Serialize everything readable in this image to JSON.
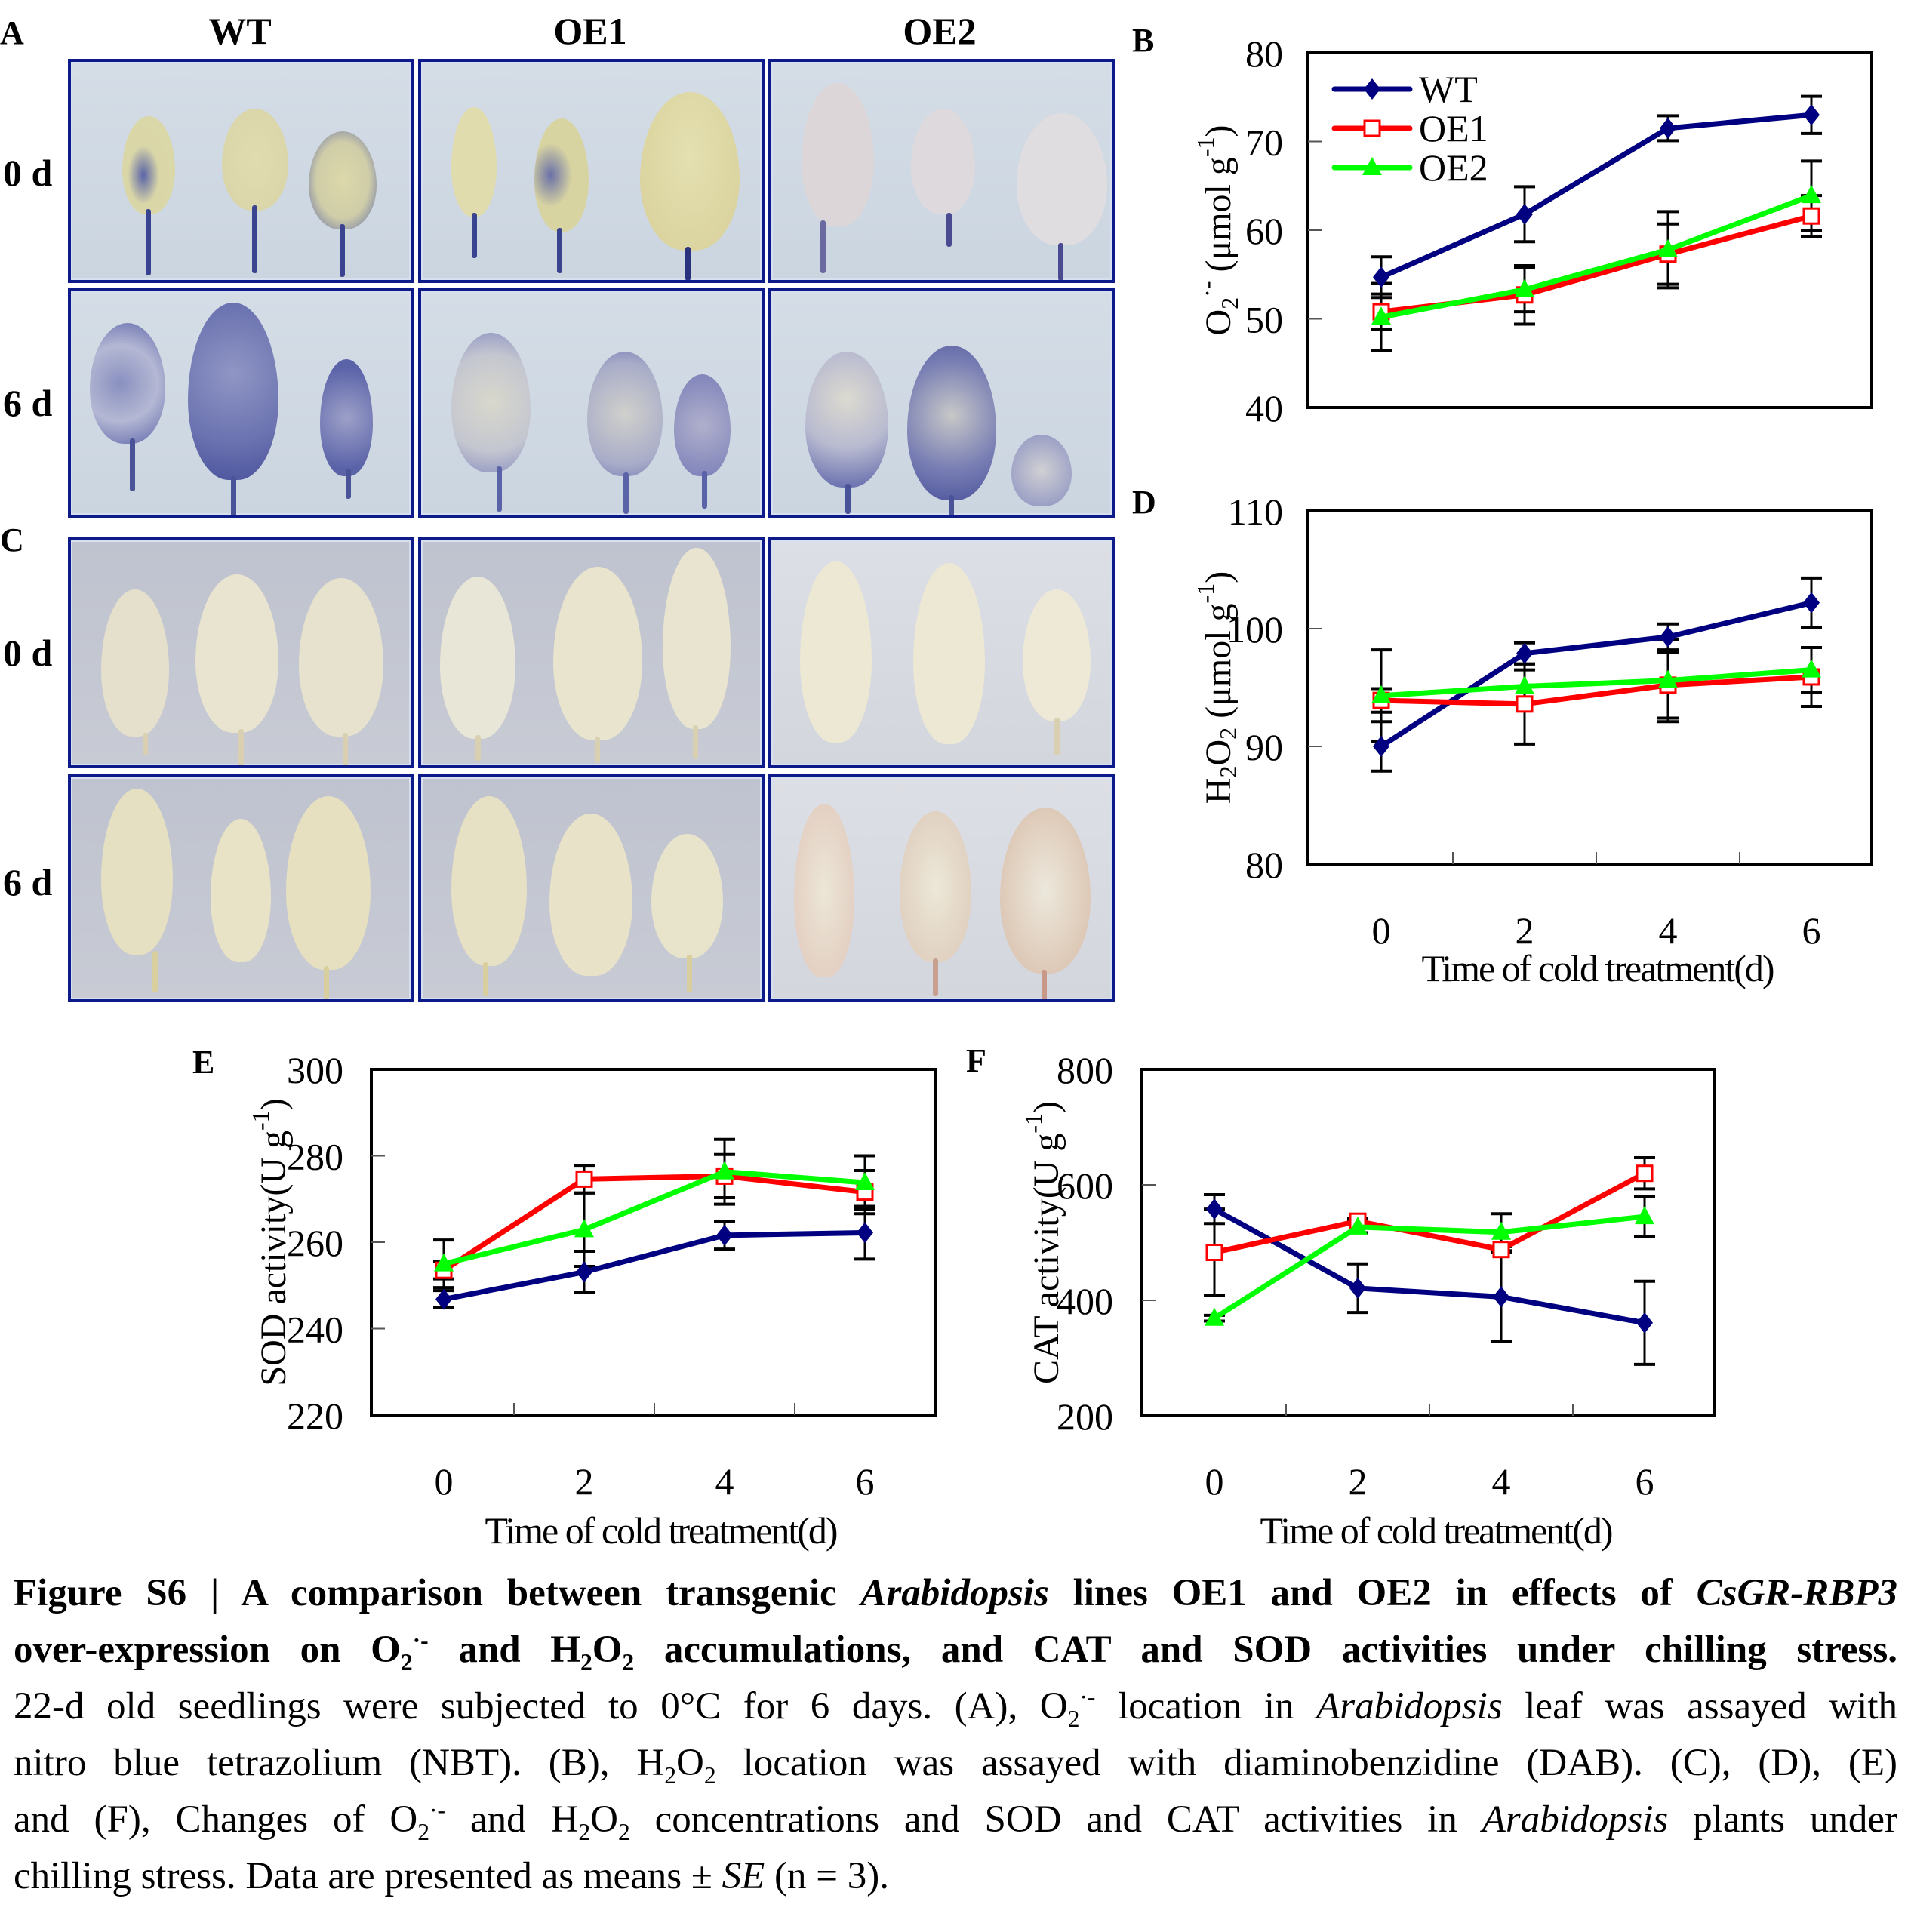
{
  "figure": {
    "panel_letters": {
      "A": "A",
      "B": "B",
      "C": "C",
      "D": "D",
      "E": "E",
      "F": "F"
    },
    "photo_grid": {
      "columns": [
        "WT",
        "OE1",
        "OE2"
      ],
      "rows_A": [
        "0 d",
        "6 d"
      ],
      "rows_C": [
        "0 d",
        "6 d"
      ],
      "stain_A": "NBT (blue formazan spots on leaves)",
      "stain_C": "DAB (pale leaves, faint brown spots in OE2 at 6 d)"
    },
    "colors": {
      "WT": "#000080",
      "OE1": "#ff0000",
      "OE2": "#00ff00",
      "photo_border": "#0d1a8a"
    }
  },
  "chart_data": [
    {
      "id": "B",
      "type": "line",
      "title": "",
      "xlabel": "",
      "ylabel_main": "O",
      "ylabel_sub": "2",
      "ylabel_sup": "·-",
      "ylabel_unit": " (μmol g",
      "ylabel_unit_sup": "-1",
      "ylabel_close": ")",
      "x": [
        0,
        2,
        4,
        6
      ],
      "xticks": [
        "0",
        "2",
        "4",
        "6"
      ],
      "show_xticks": false,
      "yticks": [
        "40",
        "50",
        "60",
        "70",
        "80"
      ],
      "ylim": [
        40,
        80
      ],
      "legend": [
        "WT",
        "OE1",
        "OE2"
      ],
      "legend_position": "top-left",
      "series": [
        {
          "name": "WT",
          "marker": "diamond",
          "values": [
            54.7,
            61.8,
            71.5,
            73.0
          ],
          "errors": [
            2.3,
            3.1,
            1.4,
            2.1
          ]
        },
        {
          "name": "OE1",
          "marker": "open-square",
          "values": [
            50.8,
            52.7,
            57.3,
            61.6
          ],
          "errors": [
            2.0,
            3.3,
            3.4,
            2.3
          ]
        },
        {
          "name": "OE2",
          "marker": "triangle",
          "values": [
            50.2,
            53.3,
            57.8,
            63.9
          ],
          "errors": [
            3.8,
            2.5,
            4.3,
            3.9
          ]
        }
      ]
    },
    {
      "id": "D",
      "type": "line",
      "title": "",
      "xlabel": "Time of cold treatment(d)",
      "ylabel_main": "H",
      "ylabel_sub": "2",
      "ylabel_mid": "O",
      "ylabel_sub2": "2",
      "ylabel_unit": " (μmol g",
      "ylabel_unit_sup": "-1",
      "ylabel_close": ")",
      "x": [
        0,
        2,
        4,
        6
      ],
      "xticks": [
        "0",
        "2",
        "4",
        "6"
      ],
      "show_xticks": true,
      "yticks": [
        "80",
        "90",
        "100",
        "110"
      ],
      "ylim": [
        80,
        110
      ],
      "series": [
        {
          "name": "WT",
          "marker": "diamond",
          "values": [
            90.0,
            97.9,
            99.3,
            102.2
          ],
          "errors": [
            2.1,
            0.9,
            1.1,
            2.1
          ]
        },
        {
          "name": "OE1",
          "marker": "open-square",
          "values": [
            93.9,
            93.6,
            95.2,
            95.9
          ],
          "errors": [
            1.0,
            3.4,
            2.8,
            2.5
          ]
        },
        {
          "name": "OE2",
          "marker": "triangle",
          "values": [
            94.3,
            95.1,
            95.6,
            96.5
          ],
          "errors": [
            3.9,
            1.4,
            3.5,
            1.9
          ]
        }
      ]
    },
    {
      "id": "E",
      "type": "line",
      "title": "",
      "xlabel": "Time of cold treatment(d)",
      "ylabel_main": "SOD activity(U g",
      "ylabel_unit_sup": "-1",
      "ylabel_close": ")",
      "x": [
        0,
        2,
        4,
        6
      ],
      "xticks": [
        "0",
        "2",
        "4",
        "6"
      ],
      "show_xticks": true,
      "yticks": [
        "220",
        "240",
        "260",
        "280",
        "300"
      ],
      "ylim": [
        220,
        300
      ],
      "series": [
        {
          "name": "WT",
          "marker": "diamond",
          "values": [
            246.8,
            253.1,
            261.6,
            262.2
          ],
          "errors": [
            2.0,
            4.8,
            3.2,
            6.1
          ]
        },
        {
          "name": "OE1",
          "marker": "open-square",
          "values": [
            253.5,
            274.6,
            275.3,
            271.6
          ],
          "errors": [
            2.0,
            3.2,
            5.0,
            5.0
          ]
        },
        {
          "name": "OE2",
          "marker": "triangle",
          "values": [
            255.0,
            262.9,
            276.3,
            273.8
          ],
          "errors": [
            5.5,
            8.5,
            7.5,
            6.2
          ]
        }
      ]
    },
    {
      "id": "F",
      "type": "line",
      "title": "",
      "xlabel": "Time of cold treatment(d)",
      "ylabel_main": "CAT activity(U g",
      "ylabel_unit_sup": "-1",
      "ylabel_close": ")",
      "x": [
        0,
        2,
        4,
        6
      ],
      "xticks": [
        "0",
        "2",
        "4",
        "6"
      ],
      "show_xticks": true,
      "yticks": [
        "200",
        "400",
        "600",
        "800"
      ],
      "ylim": [
        200,
        800
      ],
      "series": [
        {
          "name": "WT",
          "marker": "diamond",
          "values": [
            558,
            421,
            406,
            361
          ],
          "errors": [
            25,
            42,
            77,
            72
          ]
        },
        {
          "name": "OE1",
          "marker": "open-square",
          "values": [
            483,
            537,
            488,
            620
          ],
          "errors": [
            75,
            5,
            5,
            27
          ]
        },
        {
          "name": "OE2",
          "marker": "triangle",
          "values": [
            369,
            527,
            518,
            545
          ],
          "errors": [
            5,
            10,
            32,
            35
          ]
        }
      ]
    }
  ],
  "caption": {
    "label": "Figure S6 | ",
    "title_part1": "A comparison between transgenic ",
    "title_italic1": "Arabidopsis",
    "title_part2": " lines OE1 and OE2 in effects of ",
    "title_italic2": "CsGR-RBP3",
    "line2_a": "over-expression on O",
    "line2_b": " and H",
    "line2_c": "O",
    "line2_d": " accumulations, and CAT and SOD activities under chilling stress.",
    "line3_a": "22-d old seedlings were subjected to 0°C for 6 days. (A), O",
    "line3_b": " location in ",
    "line3_italic": "Arabidopsis",
    "line3_c": " leaf was assayed with",
    "line4_a": "nitro blue tetrazolium (NBT). (B), H",
    "line4_b": "O",
    "line4_c": " location was assayed with diaminobenzidine (DAB). (C), (D), (E)",
    "line5_a": "and (F), Changes of O",
    "line5_b": " and H",
    "line5_c": "O",
    "line5_d": " concentrations and SOD and CAT activities in ",
    "line5_italic": "Arabidopsis",
    "line5_e": " plants under",
    "line6_a": "chilling stress. Data are presented as means ± ",
    "line6_italic": "SE",
    "line6_b": " (n = 3).",
    "sub2": "2",
    "sup_radical": "·-",
    "sup_minus": "-"
  }
}
